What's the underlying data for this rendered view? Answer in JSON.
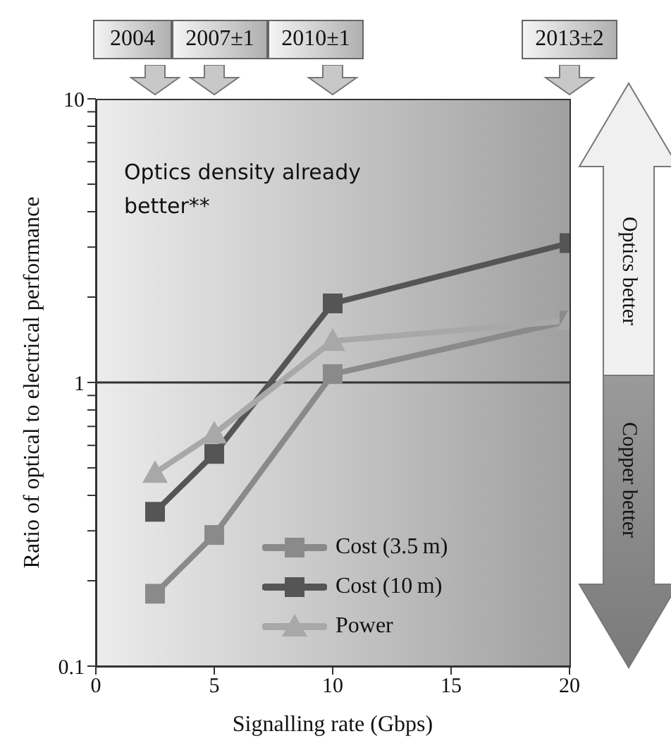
{
  "chart_data": {
    "type": "line",
    "xlabel": "Signalling rate (Gbps)",
    "ylabel": "Ratio of optical to electrical performance",
    "x": [
      2.5,
      5,
      10,
      20
    ],
    "series": [
      {
        "name": "Cost (3.5 m)",
        "color": "#8a8a8a",
        "marker": "square",
        "values": [
          0.18,
          0.29,
          1.07,
          1.65
        ]
      },
      {
        "name": "Cost (10 m)",
        "color": "#555555",
        "marker": "square",
        "values": [
          0.35,
          0.56,
          1.9,
          3.1
        ]
      },
      {
        "name": "Power",
        "color": "#a8a8a8",
        "marker": "triangle",
        "values": [
          0.48,
          0.66,
          1.4,
          1.65
        ]
      }
    ],
    "log": "y",
    "xlim": [
      0,
      20
    ],
    "xticks": [
      0,
      5,
      10,
      15,
      20
    ],
    "ylim": [
      0.1,
      10
    ],
    "yticks": [
      0.1,
      {
        "value": 0.2,
        "label": null
      },
      {
        "value": 0.3,
        "label": null
      },
      {
        "value": 0.4,
        "label": null
      },
      {
        "value": 0.5,
        "label": null
      },
      {
        "value": 0.6,
        "label": null
      },
      {
        "value": 0.7,
        "label": null
      },
      {
        "value": 0.8,
        "label": null
      },
      {
        "value": 0.9,
        "label": null
      },
      1,
      {
        "value": 2,
        "label": null
      },
      {
        "value": 3,
        "label": null
      },
      {
        "value": 4,
        "label": null
      },
      {
        "value": 5,
        "label": null
      },
      {
        "value": 6,
        "label": null
      },
      {
        "value": 7,
        "label": null
      },
      {
        "value": 8,
        "label": null
      },
      {
        "value": 9,
        "label": null
      },
      10
    ],
    "ref_lines": [
      {
        "axis": "y",
        "value": 1,
        "color": "#333333"
      }
    ],
    "legend": "bottom",
    "annotations": [
      "2004",
      "2007±1",
      "2010±1",
      "2013±2",
      "Optics density already better**",
      "Optics better",
      "Copper better"
    ]
  }
}
